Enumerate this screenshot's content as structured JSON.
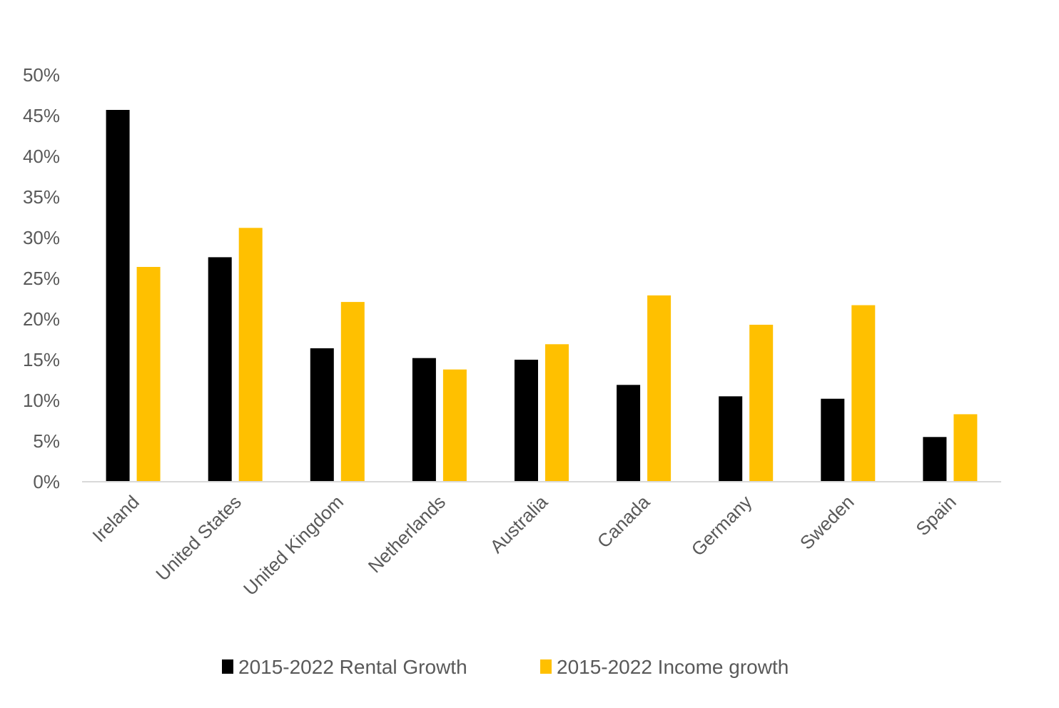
{
  "chart_data": {
    "type": "bar",
    "title": "",
    "xlabel": "",
    "ylabel": "",
    "ylim": [
      0,
      50
    ],
    "yticks": [
      "0%",
      "5%",
      "10%",
      "15%",
      "20%",
      "25%",
      "30%",
      "35%",
      "40%",
      "45%",
      "50%"
    ],
    "grid": false,
    "legend_position": "bottom",
    "categories": [
      "Ireland",
      "United States",
      "United Kingdom",
      "Netherlands",
      "Australia",
      "Canada",
      "Germany",
      "Sweden",
      "Spain"
    ],
    "series": [
      {
        "name": "2015-2022 Rental Growth",
        "color": "#000000",
        "values": [
          45.7,
          27.6,
          16.4,
          15.2,
          15.0,
          11.9,
          10.5,
          10.2,
          5.5
        ]
      },
      {
        "name": "2015-2022 Income growth",
        "color": "#FFC000",
        "values": [
          26.4,
          31.2,
          22.1,
          13.8,
          16.9,
          22.9,
          19.3,
          21.7,
          8.3
        ]
      }
    ]
  }
}
